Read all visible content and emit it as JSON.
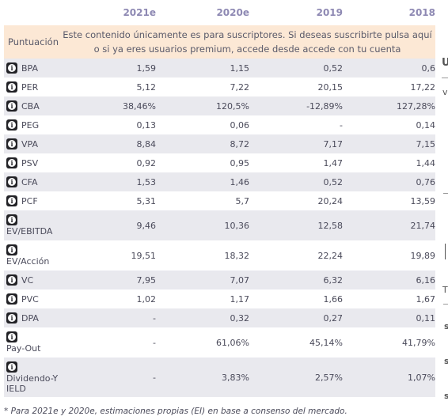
{
  "columns": [
    "2021e",
    "2020e",
    "2019",
    "2018"
  ],
  "score_label": "Puntuación",
  "subscribe_notice": "Este contenido únicamente es para suscriptores. Si deseas suscribirte pulsa aquí o si ya eres usuarios premium, accede desde accede con tu cuenta",
  "info_icon": "info-icon",
  "rows": [
    {
      "label": "BPA",
      "values": [
        "1,59",
        "1,15",
        "0,52",
        "0,6"
      ]
    },
    {
      "label": "PER",
      "values": [
        "5,12",
        "7,22",
        "20,15",
        "17,22"
      ]
    },
    {
      "label": "CBA",
      "values": [
        "38,46%",
        "120,5%",
        "-12,89%",
        "127,28%"
      ]
    },
    {
      "label": "PEG",
      "values": [
        "0,13",
        "0,06",
        "-",
        "0,14"
      ]
    },
    {
      "label": "VPA",
      "values": [
        "8,84",
        "8,72",
        "7,17",
        "7,15"
      ]
    },
    {
      "label": "PSV",
      "values": [
        "0,92",
        "0,95",
        "1,47",
        "1,44"
      ]
    },
    {
      "label": "CFA",
      "values": [
        "1,53",
        "1,46",
        "0,52",
        "0,76"
      ]
    },
    {
      "label": "PCF",
      "values": [
        "5,31",
        "5,7",
        "20,24",
        "13,59"
      ]
    },
    {
      "label": "EV/EBITDA",
      "values": [
        "9,46",
        "10,36",
        "12,58",
        "21,74"
      ]
    },
    {
      "label": "EV/Acción",
      "values": [
        "19,51",
        "18,32",
        "22,24",
        "19,89"
      ]
    },
    {
      "label": "VC",
      "values": [
        "7,95",
        "7,07",
        "6,32",
        "6,16"
      ]
    },
    {
      "label": "PVC",
      "values": [
        "1,02",
        "1,17",
        "1,66",
        "1,67"
      ]
    },
    {
      "label": "DPA",
      "values": [
        "-",
        "0,32",
        "0,27",
        "0,11"
      ]
    },
    {
      "label": "Pay-Out",
      "values": [
        "-",
        "61,06%",
        "45,14%",
        "41,79%"
      ]
    },
    {
      "label": "Dividendo-YIELD",
      "values": [
        "-",
        "3,83%",
        "2,57%",
        "1,07%"
      ]
    }
  ],
  "footnote": "* Para 2021e y 2020e, estimaciones propias (EI) en base a consenso del mercado.",
  "colors": {
    "header_text": "#8e89b3",
    "score_band": "#fce8d5",
    "row_shade": "#e9e9ee",
    "icon_bg": "#222226"
  }
}
